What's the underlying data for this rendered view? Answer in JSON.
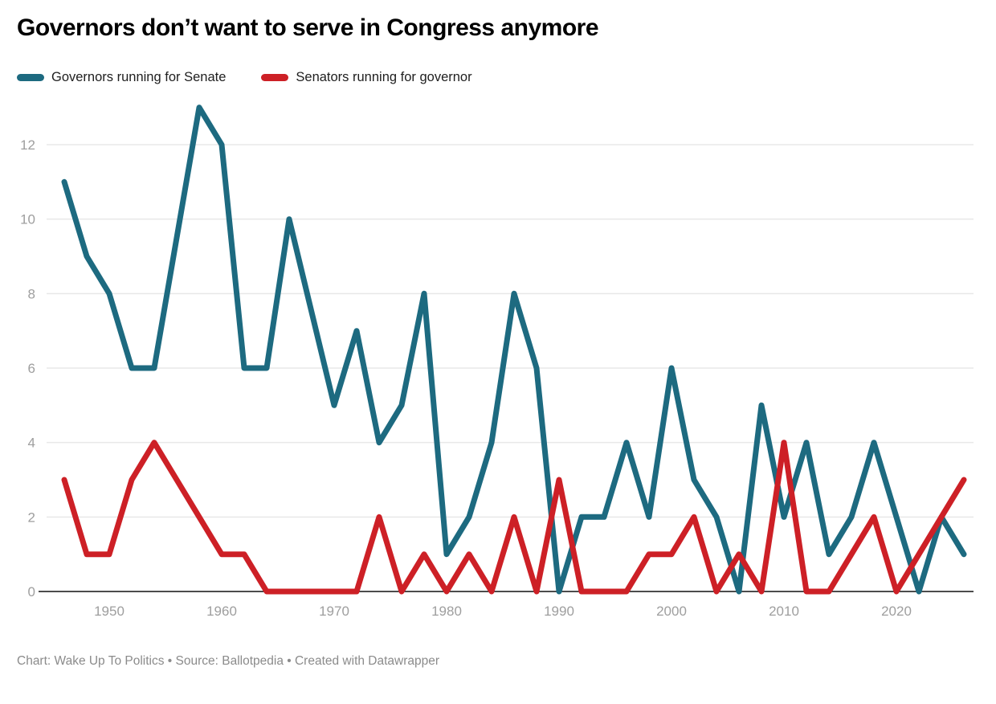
{
  "title": "Governors don’t want to serve in Congress anymore",
  "legend": [
    {
      "label": "Governors running for Senate",
      "color": "#1d6a80"
    },
    {
      "label": "Senators running for governor",
      "color": "#cd2026"
    }
  ],
  "footer": "Chart: Wake Up To Politics • Source: Ballotpedia • Created with Datawrapper",
  "chart_data": {
    "type": "line",
    "title": "Governors don’t want to serve in Congress anymore",
    "x": [
      1946,
      1948,
      1950,
      1952,
      1954,
      1956,
      1958,
      1960,
      1962,
      1964,
      1966,
      1968,
      1970,
      1972,
      1974,
      1976,
      1978,
      1980,
      1982,
      1984,
      1986,
      1988,
      1990,
      1992,
      1994,
      1996,
      1998,
      2000,
      2002,
      2004,
      2006,
      2008,
      2010,
      2012,
      2014,
      2016,
      2018,
      2020,
      2022,
      2024,
      2026
    ],
    "series": [
      {
        "name": "Governors running for Senate",
        "color": "#1d6a80",
        "values": [
          11,
          9,
          8,
          6,
          6,
          null,
          13,
          12,
          6,
          6,
          10,
          null,
          5,
          7,
          4,
          5,
          8,
          1,
          2,
          4,
          8,
          6,
          0,
          2,
          2,
          4,
          2,
          6,
          3,
          2,
          0,
          5,
          2,
          4,
          1,
          2,
          4,
          2,
          0,
          2,
          1
        ]
      },
      {
        "name": "Senators running for governor",
        "color": "#cd2026",
        "values": [
          3,
          1,
          1,
          3,
          4,
          3,
          2,
          1,
          1,
          0,
          0,
          0,
          0,
          0,
          2,
          0,
          1,
          0,
          1,
          0,
          2,
          0,
          3,
          0,
          0,
          0,
          1,
          1,
          2,
          0,
          1,
          0,
          4,
          0,
          0,
          1,
          2,
          0,
          1,
          2,
          3
        ]
      }
    ],
    "xticks": [
      1950,
      1960,
      1970,
      1980,
      1990,
      2000,
      2010,
      2020
    ],
    "yticks": [
      0,
      2,
      4,
      6,
      8,
      10,
      12
    ],
    "ylim": [
      0,
      13
    ],
    "xlabel": "",
    "ylabel": "",
    "grid": "horizontal",
    "legend_position": "top",
    "grid_color": "#e8e8e8",
    "baseline_color": "#111111",
    "axis_text_color": "#9e9e9e"
  }
}
